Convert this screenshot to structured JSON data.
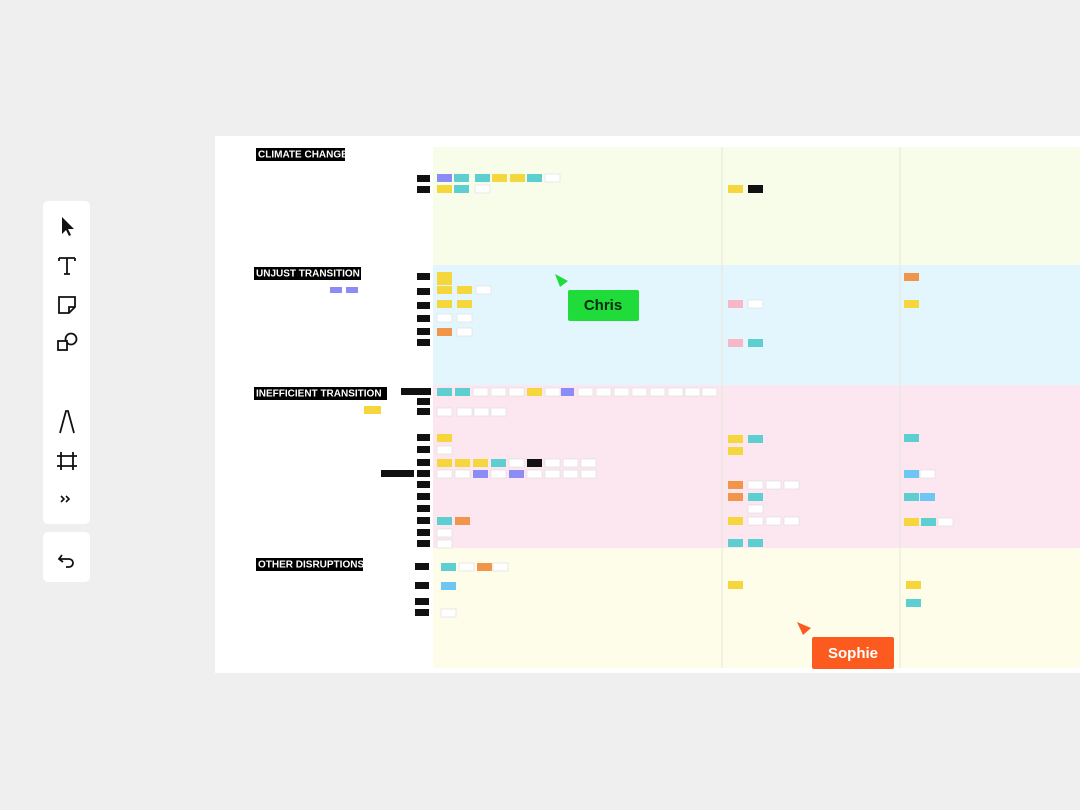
{
  "sections": [
    {
      "title": "CLIMATE CHANGE"
    },
    {
      "title": "UNJUST TRANSITION"
    },
    {
      "title": "INEFFICIENT TRANSITION"
    },
    {
      "title": "OTHER DISRUPTIONS"
    }
  ],
  "cursors": [
    {
      "name": "Chris"
    },
    {
      "name": "Sophie"
    }
  ]
}
